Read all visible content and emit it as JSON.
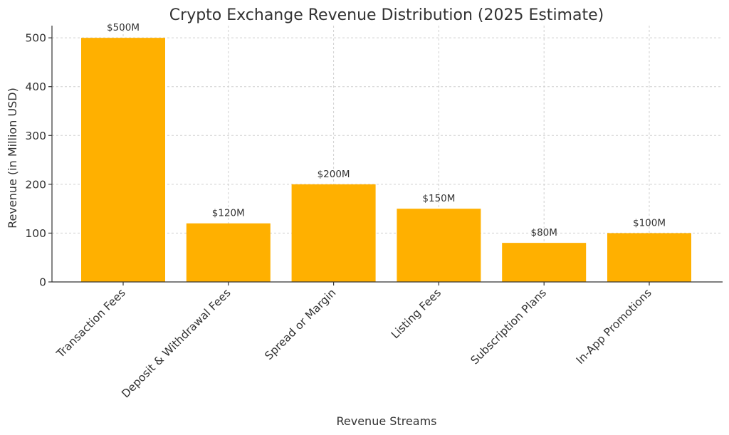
{
  "chart_data": {
    "type": "bar",
    "title": "Crypto Exchange Revenue Distribution (2025 Estimate)",
    "xlabel": "Revenue Streams",
    "ylabel": "Revenue (in Million USD)",
    "categories": [
      "Transaction Fees",
      "Deposit & Withdrawal Fees",
      "Spread or Margin",
      "Listing Fees",
      "Subscription Plans",
      "In-App Promotions"
    ],
    "values": [
      500,
      120,
      200,
      150,
      80,
      100
    ],
    "data_labels": [
      "$500M",
      "$120M",
      "$200M",
      "$150M",
      "$80M",
      "$100M"
    ],
    "ylim": [
      0,
      525
    ],
    "yticks": [
      0,
      100,
      200,
      300,
      400,
      500
    ],
    "grid": true,
    "bar_color": "#FFB000"
  }
}
